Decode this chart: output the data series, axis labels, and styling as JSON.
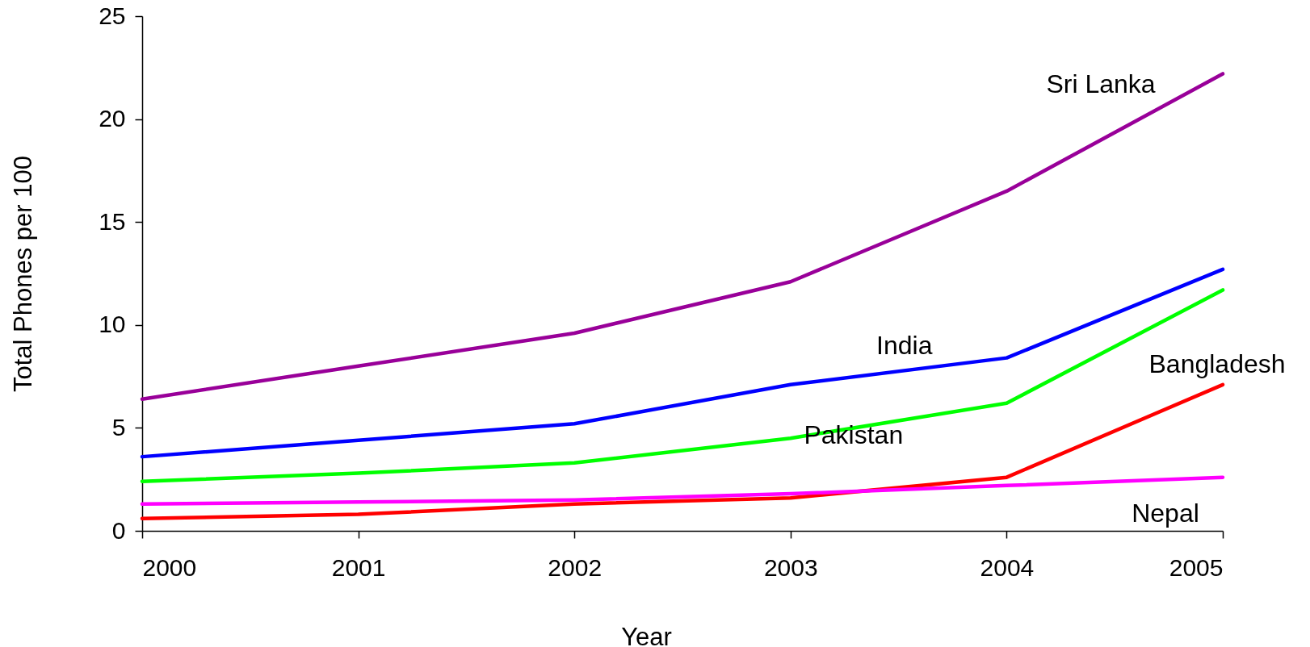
{
  "chart_data": {
    "type": "line",
    "x": [
      2000,
      2001,
      2002,
      2003,
      2004,
      2005
    ],
    "xlabel": "Year",
    "ylabel": "Total Phones per 100",
    "xlim": [
      2000,
      2005
    ],
    "xticks": [
      2000,
      2001,
      2002,
      2003,
      2004,
      2005
    ],
    "ylim": [
      0,
      25
    ],
    "yticks": [
      0,
      5,
      10,
      15,
      20,
      25
    ],
    "grid": false,
    "series": [
      {
        "name": "Sri Lanka",
        "color": "#990099",
        "values": [
          6.4,
          8.0,
          9.6,
          12.1,
          16.5,
          22.2
        ]
      },
      {
        "name": "India",
        "color": "#0000ff",
        "values": [
          3.6,
          4.4,
          5.2,
          7.1,
          8.4,
          12.7
        ]
      },
      {
        "name": "Pakistan",
        "color": "#00ff00",
        "values": [
          2.4,
          2.8,
          3.3,
          4.5,
          6.2,
          11.7
        ]
      },
      {
        "name": "Bangladesh",
        "color": "#ff0000",
        "values": [
          0.6,
          0.8,
          1.3,
          1.6,
          2.6,
          7.1
        ]
      },
      {
        "name": "Nepal",
        "color": "#ff00ff",
        "values": [
          1.3,
          1.4,
          1.5,
          1.8,
          2.2,
          2.6
        ]
      }
    ]
  }
}
